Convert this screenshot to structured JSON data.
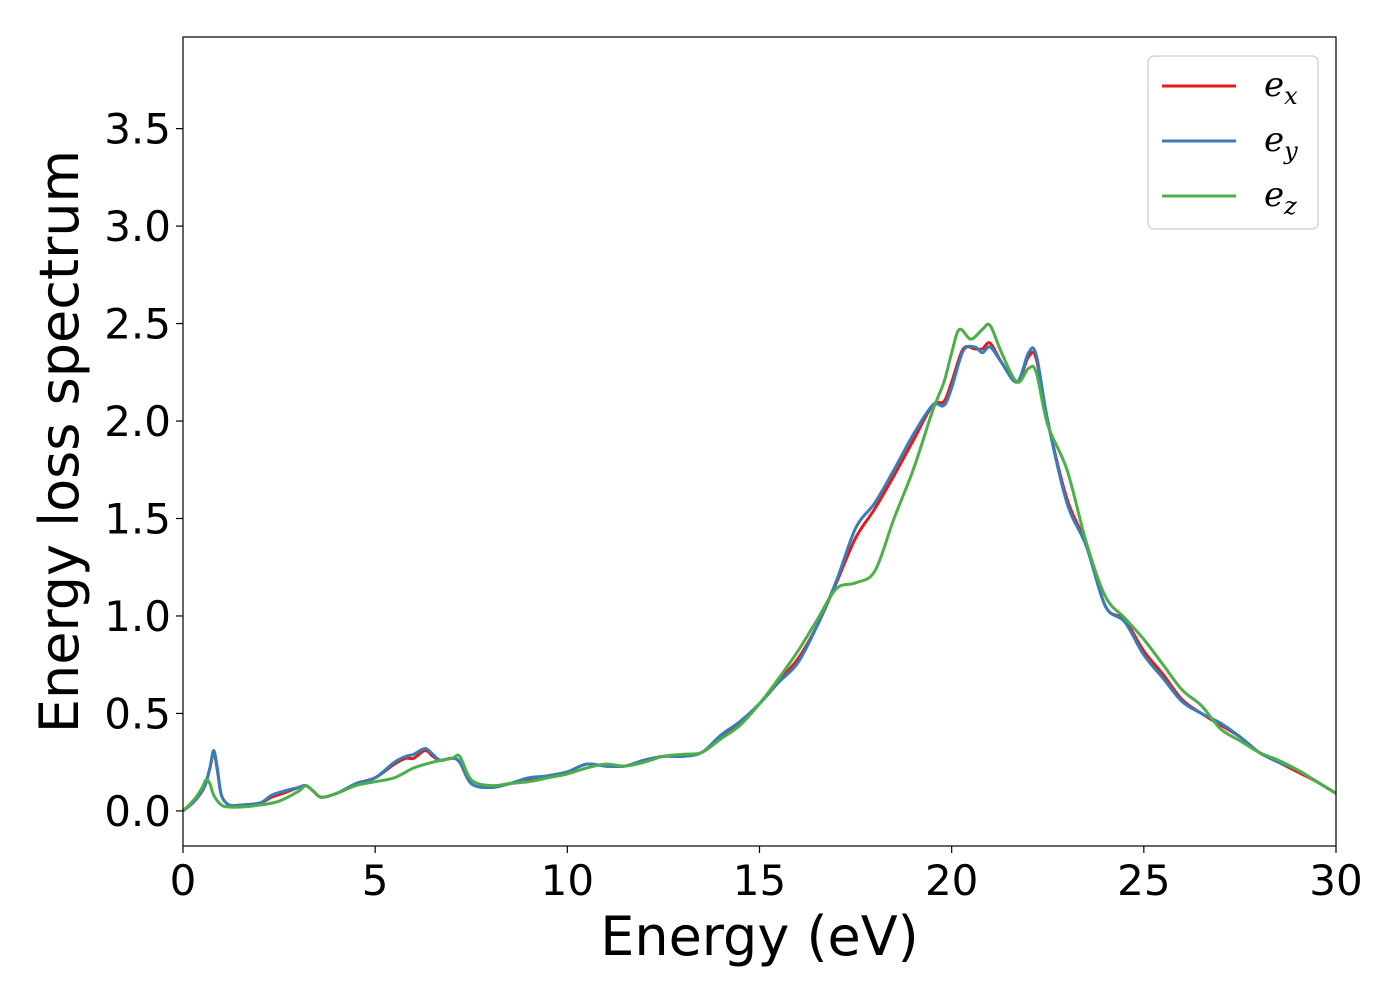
{
  "chart_data": {
    "type": "line",
    "title": "",
    "xlabel": "Energy (eV)",
    "ylabel": "Energy loss spectrum",
    "xlim": [
      0,
      30
    ],
    "ylim": [
      -0.18,
      3.97
    ],
    "xticks": [
      0,
      5,
      10,
      15,
      20,
      25,
      30
    ],
    "xtick_labels": [
      "0",
      "5",
      "10",
      "15",
      "20",
      "25",
      "30"
    ],
    "yticks": [
      0.0,
      0.5,
      1.0,
      1.5,
      2.0,
      2.5,
      3.0,
      3.5
    ],
    "ytick_labels": [
      "0.0",
      "0.5",
      "1.0",
      "1.5",
      "2.0",
      "2.5",
      "3.0",
      "3.5"
    ],
    "grid": false,
    "legend_position": "top-right",
    "series": [
      {
        "name": "e_x",
        "legend_base": "e",
        "legend_sub": "x",
        "color": "#e41a1c",
        "x": [
          0.0,
          0.3,
          0.55,
          0.7,
          0.8,
          0.9,
          1.0,
          1.2,
          1.5,
          2.0,
          2.3,
          2.6,
          3.0,
          3.2,
          3.4,
          3.6,
          4.0,
          4.5,
          5.0,
          5.5,
          5.8,
          6.0,
          6.3,
          6.5,
          6.7,
          7.0,
          7.2,
          7.5,
          8.0,
          8.5,
          9.0,
          9.5,
          10.0,
          10.5,
          11.0,
          11.5,
          12.0,
          12.5,
          13.0,
          13.5,
          14.0,
          14.5,
          15.0,
          15.5,
          16.0,
          16.5,
          17.0,
          17.5,
          18.0,
          18.5,
          19.0,
          19.5,
          19.8,
          20.0,
          20.3,
          20.6,
          20.8,
          21.0,
          21.3,
          21.7,
          22.0,
          22.2,
          22.5,
          23.0,
          23.5,
          24.0,
          24.5,
          25.0,
          25.5,
          26.0,
          26.5,
          27.0,
          27.5,
          28.0,
          28.5,
          29.0,
          29.5,
          30.0
        ],
        "y": [
          0.0,
          0.05,
          0.12,
          0.22,
          0.3,
          0.2,
          0.08,
          0.03,
          0.03,
          0.04,
          0.07,
          0.09,
          0.12,
          0.13,
          0.1,
          0.07,
          0.09,
          0.14,
          0.17,
          0.24,
          0.27,
          0.27,
          0.31,
          0.28,
          0.26,
          0.27,
          0.25,
          0.14,
          0.12,
          0.14,
          0.16,
          0.18,
          0.2,
          0.24,
          0.23,
          0.23,
          0.26,
          0.28,
          0.28,
          0.3,
          0.38,
          0.45,
          0.55,
          0.67,
          0.78,
          0.95,
          1.17,
          1.4,
          1.55,
          1.72,
          1.9,
          2.08,
          2.1,
          2.2,
          2.37,
          2.37,
          2.37,
          2.4,
          2.3,
          2.2,
          2.33,
          2.32,
          2.0,
          1.6,
          1.37,
          1.05,
          0.98,
          0.82,
          0.7,
          0.57,
          0.5,
          0.44,
          0.38,
          0.3,
          0.25,
          0.2,
          0.15,
          0.09
        ]
      },
      {
        "name": "e_y",
        "legend_base": "e",
        "legend_sub": "y",
        "color": "#377eb8",
        "x": [
          0.0,
          0.3,
          0.55,
          0.7,
          0.8,
          0.9,
          1.0,
          1.2,
          1.5,
          2.0,
          2.3,
          2.6,
          3.0,
          3.2,
          3.4,
          3.6,
          4.0,
          4.5,
          5.0,
          5.5,
          5.8,
          6.0,
          6.3,
          6.5,
          6.7,
          7.0,
          7.2,
          7.5,
          8.0,
          8.5,
          9.0,
          9.5,
          10.0,
          10.5,
          11.0,
          11.5,
          12.0,
          12.5,
          13.0,
          13.5,
          14.0,
          14.5,
          15.0,
          15.5,
          16.0,
          16.5,
          17.0,
          17.5,
          18.0,
          18.5,
          19.0,
          19.5,
          19.8,
          20.0,
          20.3,
          20.6,
          20.8,
          21.0,
          21.3,
          21.7,
          22.0,
          22.2,
          22.5,
          23.0,
          23.5,
          24.0,
          24.5,
          25.0,
          25.5,
          26.0,
          26.5,
          27.0,
          27.5,
          28.0,
          28.5,
          29.0,
          29.5,
          30.0
        ],
        "y": [
          0.0,
          0.05,
          0.12,
          0.22,
          0.31,
          0.21,
          0.08,
          0.03,
          0.03,
          0.04,
          0.08,
          0.1,
          0.12,
          0.13,
          0.1,
          0.07,
          0.09,
          0.14,
          0.17,
          0.25,
          0.28,
          0.29,
          0.32,
          0.29,
          0.26,
          0.27,
          0.25,
          0.14,
          0.12,
          0.14,
          0.17,
          0.18,
          0.2,
          0.24,
          0.23,
          0.23,
          0.26,
          0.28,
          0.28,
          0.3,
          0.39,
          0.46,
          0.55,
          0.66,
          0.76,
          0.95,
          1.18,
          1.45,
          1.58,
          1.75,
          1.93,
          2.08,
          2.08,
          2.17,
          2.36,
          2.38,
          2.35,
          2.38,
          2.3,
          2.2,
          2.35,
          2.34,
          2.0,
          1.58,
          1.36,
          1.05,
          0.97,
          0.8,
          0.68,
          0.56,
          0.5,
          0.45,
          0.38,
          0.3,
          0.25,
          0.21,
          0.15,
          0.09
        ]
      },
      {
        "name": "e_z",
        "legend_base": "e",
        "legend_sub": "z",
        "color": "#4daf4a",
        "x": [
          0.0,
          0.3,
          0.5,
          0.6,
          0.7,
          0.8,
          1.0,
          1.2,
          1.5,
          2.0,
          2.5,
          3.0,
          3.2,
          3.4,
          3.6,
          4.0,
          4.5,
          5.0,
          5.5,
          6.0,
          6.5,
          7.0,
          7.2,
          7.5,
          8.0,
          8.5,
          9.0,
          9.5,
          10.0,
          10.5,
          11.0,
          11.5,
          12.0,
          12.5,
          13.0,
          13.5,
          14.0,
          14.5,
          15.0,
          15.5,
          16.0,
          16.5,
          17.0,
          17.5,
          18.0,
          18.5,
          19.0,
          19.5,
          19.8,
          20.0,
          20.2,
          20.5,
          20.8,
          21.0,
          21.3,
          21.7,
          22.0,
          22.2,
          22.5,
          23.0,
          23.5,
          24.0,
          24.5,
          25.0,
          25.5,
          26.0,
          26.5,
          27.0,
          27.5,
          28.0,
          28.5,
          29.0,
          29.5,
          30.0
        ],
        "y": [
          0.0,
          0.06,
          0.12,
          0.16,
          0.14,
          0.08,
          0.03,
          0.02,
          0.02,
          0.03,
          0.05,
          0.1,
          0.13,
          0.1,
          0.07,
          0.09,
          0.13,
          0.15,
          0.17,
          0.22,
          0.25,
          0.27,
          0.28,
          0.16,
          0.13,
          0.14,
          0.15,
          0.17,
          0.19,
          0.22,
          0.24,
          0.23,
          0.25,
          0.28,
          0.29,
          0.3,
          0.37,
          0.44,
          0.55,
          0.68,
          0.82,
          0.98,
          1.14,
          1.17,
          1.23,
          1.5,
          1.75,
          2.05,
          2.2,
          2.35,
          2.47,
          2.42,
          2.47,
          2.49,
          2.35,
          2.2,
          2.27,
          2.25,
          1.98,
          1.75,
          1.38,
          1.1,
          0.99,
          0.88,
          0.75,
          0.62,
          0.54,
          0.42,
          0.36,
          0.3,
          0.26,
          0.21,
          0.15,
          0.09
        ]
      }
    ]
  }
}
